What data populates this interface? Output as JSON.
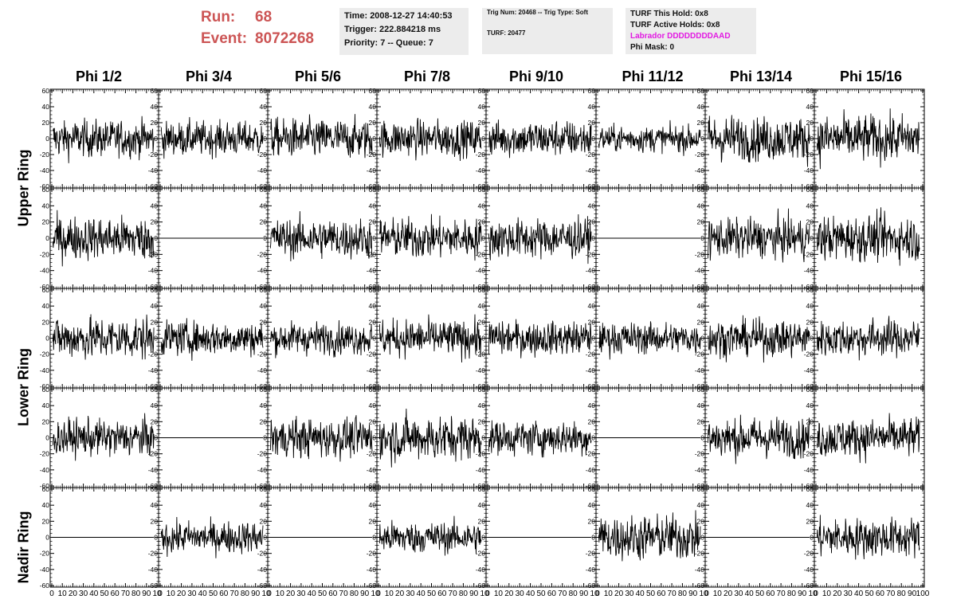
{
  "header": {
    "run_label": "Run:",
    "run_value": "68",
    "event_label": "Event:",
    "event_value": "8072268",
    "time_line": "Time: 2008-12-27 14:40:53",
    "trigger_line": "Trigger: 222.884218 ms",
    "priority_line": "Priority: 7 -- Queue: 7",
    "trig_line": "Trig Num: 20468 -- Trig Type: Soft",
    "turf_line": "TURF: 20477",
    "turf_hold_line": "TURF This Hold: 0x8",
    "turf_active_line": "TURF Active Holds: 0x8",
    "labrador_line": "Labrador DDDDDDDDAAD",
    "phi_mask_line": "Phi Mask: 0",
    "labrador_color": "#e21ae2",
    "run_color": "#cc5555"
  },
  "columns": [
    "Phi 1/2",
    "Phi 3/4",
    "Phi 5/6",
    "Phi 7/8",
    "Phi 9/10",
    "Phi 11/12",
    "Phi 13/14",
    "Phi 15/16"
  ],
  "rows": [
    "Upper Ring",
    "Lower Ring",
    "Nadir Ring"
  ],
  "chart_data": {
    "type": "line",
    "grid_rows": 5,
    "grid_cols": 8,
    "ylim": [
      -60,
      60
    ],
    "xlim": [
      0,
      100
    ],
    "y_ticks": [
      -60,
      -40,
      -20,
      0,
      20,
      40,
      60
    ],
    "x_ticks": [
      0,
      10,
      20,
      30,
      40,
      50,
      60,
      70,
      80,
      90,
      100
    ],
    "x_tick_labels_per_panel": [
      "0",
      "10",
      "20",
      "30",
      "40",
      "50",
      "60",
      "70",
      "80",
      "90",
      "10"
    ],
    "last_x_tick_label": "100",
    "samples_per_trace": 256,
    "panel_amplitude": [
      [
        14,
        13,
        15,
        14,
        14,
        10,
        17,
        18
      ],
      [
        16,
        0,
        15,
        15,
        15,
        0,
        15,
        17
      ],
      [
        16,
        13,
        12,
        14,
        13,
        12,
        14,
        14
      ],
      [
        14,
        0,
        15,
        17,
        13,
        0,
        15,
        15
      ],
      [
        0,
        12,
        0,
        12,
        0,
        17,
        0,
        15
      ]
    ],
    "line_color": "#000000"
  }
}
